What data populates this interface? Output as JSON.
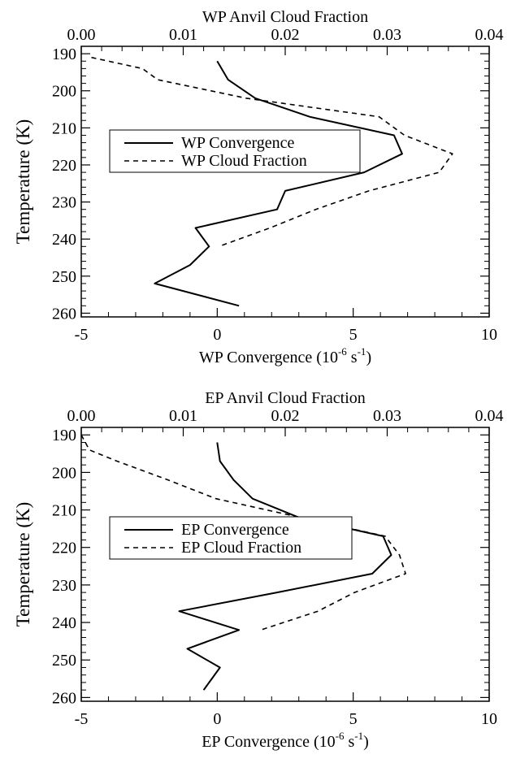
{
  "chart_data": [
    {
      "type": "line",
      "top_axis_title": "WP Anvil Cloud Fraction",
      "bottom_axis_title_main": "WP Convergence (10",
      "bottom_axis_title_sup1": "-6",
      "bottom_axis_title_mid": " s",
      "bottom_axis_title_sup2": "-1",
      "bottom_axis_title_end": ")",
      "ylabel": "Temperature (K)",
      "bottom_xlim": [
        -5,
        10
      ],
      "top_xlim": [
        0.0,
        0.04
      ],
      "ylim": [
        188,
        261
      ],
      "bottom_ticks": [
        "-5",
        "0",
        "5",
        "10"
      ],
      "top_ticks": [
        "0.00",
        "0.01",
        "0.02",
        "0.03",
        "0.04"
      ],
      "yticks": [
        "190",
        "200",
        "210",
        "220",
        "230",
        "240",
        "250",
        "260"
      ],
      "legend_position": "middle-left",
      "series": [
        {
          "name": "WP Convergence",
          "style": "solid",
          "axis": "bottom",
          "x": [
            0.0,
            0.4,
            1.4,
            3.4,
            6.5,
            6.8,
            5.4,
            2.5,
            2.2,
            -0.8,
            -0.3,
            -1.0,
            -2.3,
            0.8
          ],
          "y": [
            192,
            197,
            202,
            207,
            212,
            217,
            222,
            227,
            232,
            237,
            242,
            247,
            252,
            258
          ]
        },
        {
          "name": "WP Cloud Fraction",
          "style": "dashed",
          "axis": "top",
          "x": [
            0.001,
            0.006,
            0.0075,
            0.0162,
            0.0292,
            0.0317,
            0.0364,
            0.0351,
            0.0282,
            0.023,
            0.0185,
            0.0135
          ],
          "y": [
            191,
            194,
            197,
            202,
            207,
            212,
            217,
            222,
            227,
            232,
            237,
            242
          ]
        }
      ]
    },
    {
      "type": "line",
      "top_axis_title": "EP Anvil Cloud Fraction",
      "bottom_axis_title_main": "EP Convergence (10",
      "bottom_axis_title_sup1": "-6",
      "bottom_axis_title_mid": " s",
      "bottom_axis_title_sup2": "-1",
      "bottom_axis_title_end": ")",
      "ylabel": "Temperature (K)",
      "bottom_xlim": [
        -5,
        10
      ],
      "top_xlim": [
        0.0,
        0.04
      ],
      "ylim": [
        188,
        261
      ],
      "bottom_ticks": [
        "-5",
        "0",
        "5",
        "10"
      ],
      "top_ticks": [
        "0.00",
        "0.01",
        "0.02",
        "0.03",
        "0.04"
      ],
      "yticks": [
        "190",
        "200",
        "210",
        "220",
        "230",
        "240",
        "250",
        "260"
      ],
      "legend_position": "middle-left",
      "series": [
        {
          "name": "EP Convergence",
          "style": "solid",
          "axis": "bottom",
          "x": [
            0.0,
            0.1,
            0.6,
            1.3,
            3.0,
            6.1,
            6.4,
            5.7,
            2.2,
            -1.4,
            0.8,
            -1.1,
            0.1,
            -0.5
          ],
          "y": [
            192,
            197,
            202,
            207,
            212,
            217,
            222,
            227,
            232,
            237,
            242,
            247,
            252,
            258
          ]
        },
        {
          "name": "EP Cloud Fraction",
          "style": "dashed",
          "axis": "top",
          "x": [
            0.0,
            0.0008,
            0.0035,
            0.0085,
            0.0132,
            0.0215,
            0.0298,
            0.0312,
            0.0318,
            0.0268,
            0.0232,
            0.0176
          ],
          "y": [
            190,
            194,
            197,
            202,
            207,
            212,
            217,
            222,
            227,
            232,
            237,
            242
          ]
        }
      ]
    }
  ]
}
